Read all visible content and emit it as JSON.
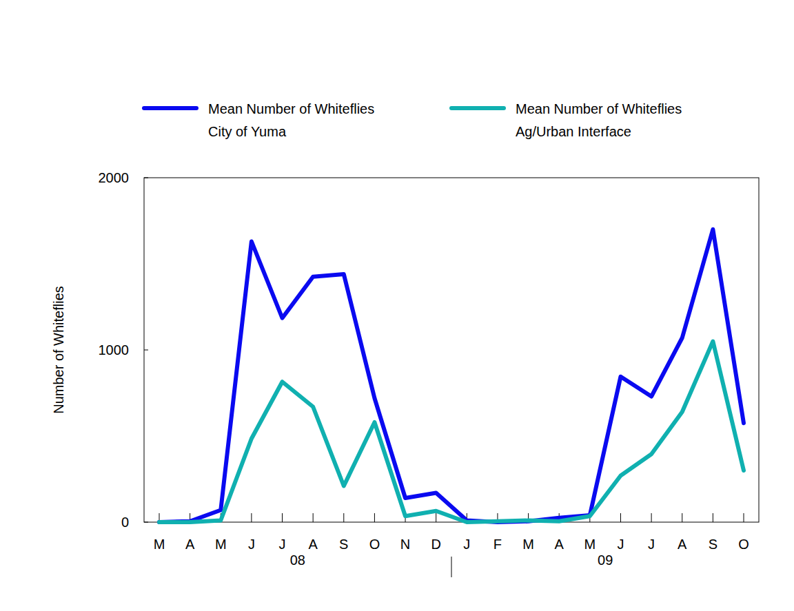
{
  "chart_data": {
    "type": "line",
    "y_label": "Number of Whiteflies",
    "categories": [
      "M",
      "A",
      "M",
      "J",
      "J",
      "A",
      "S",
      "O",
      "N",
      "D",
      "J",
      "F",
      "M",
      "A",
      "M",
      "J",
      "J",
      "A",
      "S",
      "O"
    ],
    "x_groups": [
      {
        "label": "08",
        "from": 0,
        "to": 9
      },
      {
        "label": "09",
        "from": 10,
        "to": 19
      }
    ],
    "series": [
      {
        "name": "Mean Number of Whiteflies\nCity of Yuma",
        "color": "#0a0af0",
        "values": [
          0,
          5,
          70,
          1630,
          1185,
          1425,
          1440,
          720,
          140,
          170,
          10,
          0,
          5,
          25,
          40,
          845,
          730,
          1070,
          1700,
          575
        ]
      },
      {
        "name": "Mean Number of Whiteflies\nAg/Urban Interface",
        "color": "#10b0b0",
        "values": [
          0,
          0,
          10,
          485,
          815,
          670,
          210,
          580,
          35,
          65,
          0,
          5,
          10,
          5,
          35,
          270,
          395,
          640,
          1050,
          300
        ]
      }
    ],
    "ylim": [
      0,
      2000
    ],
    "yticks": [
      0,
      1000,
      2000
    ],
    "legend": "top",
    "grid": false
  }
}
